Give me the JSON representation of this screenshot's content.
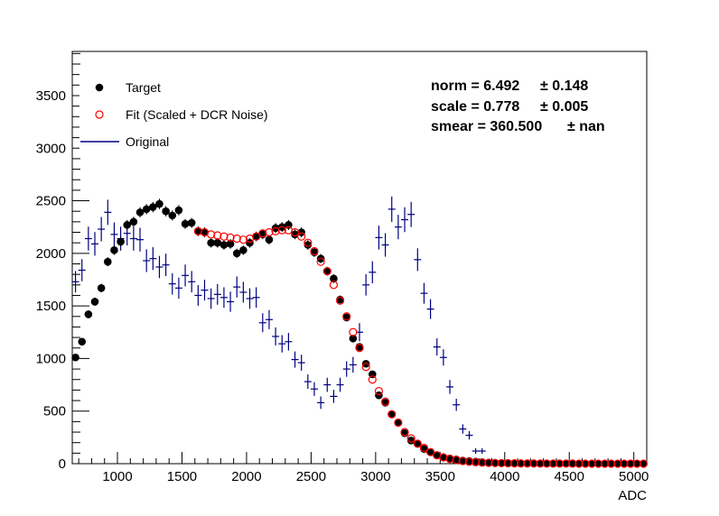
{
  "chart_data": {
    "type": "scatter",
    "title": "",
    "xlabel": "ADC",
    "ylabel": "",
    "xlim": [
      650,
      5100
    ],
    "ylim": [
      0,
      3920
    ],
    "xticks": [
      1000,
      1500,
      2000,
      2500,
      3000,
      3500,
      4000,
      4500,
      5000
    ],
    "xtick_labels": [
      "1000",
      "1500",
      "2000",
      "2500",
      "3000",
      "3500",
      "4000",
      "4500",
      "5000"
    ],
    "yticks": [
      0,
      500,
      1000,
      1500,
      2000,
      2500,
      3000,
      3500
    ],
    "ytick_labels": [
      "0",
      "500",
      "1000",
      "1500",
      "2000",
      "2500",
      "3000",
      "3500"
    ],
    "grid": false,
    "legend": {
      "placement": "top-left",
      "entries": [
        {
          "label": "Target",
          "marker": "filled-circle",
          "color": "#000000"
        },
        {
          "label": "Fit (Scaled + DCR Noise)",
          "marker": "open-circle",
          "color": "#ff0000"
        },
        {
          "label": "Original",
          "marker": "line",
          "color": "#000080"
        }
      ]
    },
    "stats": [
      {
        "label": "norm = 6.492",
        "error": "± 0.148"
      },
      {
        "label": "scale = 0.778",
        "error": "± 0.005"
      },
      {
        "label": "smear = 360.500",
        "error": "± nan"
      }
    ],
    "series": [
      {
        "name": "Target",
        "color": "#000000",
        "marker": "filled-circle",
        "x": [
          675,
          725,
          775,
          825,
          875,
          925,
          975,
          1025,
          1075,
          1125,
          1175,
          1225,
          1275,
          1325,
          1375,
          1425,
          1475,
          1525,
          1575,
          1625,
          1675,
          1725,
          1775,
          1825,
          1875,
          1925,
          1975,
          2025,
          2075,
          2125,
          2175,
          2225,
          2275,
          2325,
          2375,
          2425,
          2475,
          2525,
          2575,
          2625,
          2675,
          2725,
          2775,
          2825,
          2875,
          2925,
          2975,
          3025,
          3075,
          3125,
          3175,
          3225,
          3275,
          3325,
          3375,
          3425,
          3475,
          3525,
          3575,
          3625,
          3675,
          3725,
          3775,
          3825,
          3875,
          3925,
          3975,
          4025,
          4075,
          4125,
          4175,
          4225,
          4275,
          4325,
          4375,
          4425,
          4475,
          4525,
          4575,
          4625,
          4675,
          4725,
          4775,
          4825,
          4875,
          4925,
          4975,
          5025,
          5075
        ],
        "y": [
          1010,
          1160,
          1420,
          1540,
          1670,
          1920,
          2030,
          2110,
          2270,
          2300,
          2390,
          2420,
          2440,
          2470,
          2400,
          2360,
          2410,
          2280,
          2290,
          2210,
          2200,
          2100,
          2100,
          2080,
          2090,
          2000,
          2030,
          2100,
          2160,
          2180,
          2130,
          2240,
          2250,
          2270,
          2180,
          2200,
          2080,
          2010,
          1950,
          1830,
          1760,
          1560,
          1390,
          1190,
          1110,
          950,
          850,
          650,
          580,
          470,
          390,
          290,
          220,
          190,
          140,
          110,
          80,
          60,
          50,
          40,
          30,
          25,
          20,
          15,
          10,
          8,
          6,
          5,
          4,
          3,
          2,
          2,
          2,
          1,
          1,
          1,
          1,
          1,
          1,
          0,
          0,
          0,
          0,
          0,
          0,
          0,
          0,
          0,
          0
        ]
      },
      {
        "name": "Fit (Scaled + DCR Noise)",
        "color": "#ff0000",
        "marker": "open-circle",
        "x": [
          1625,
          1675,
          1725,
          1775,
          1825,
          1875,
          1925,
          1975,
          2025,
          2075,
          2125,
          2175,
          2225,
          2275,
          2325,
          2375,
          2425,
          2475,
          2525,
          2575,
          2625,
          2675,
          2725,
          2775,
          2825,
          2875,
          2925,
          2975,
          3025,
          3075,
          3125,
          3175,
          3225,
          3275,
          3325,
          3375,
          3425,
          3475,
          3525,
          3575,
          3625,
          3675,
          3725,
          3775,
          3825,
          3875,
          3925,
          3975,
          4025,
          4075,
          4125,
          4175,
          4225,
          4275,
          4325,
          4375,
          4425,
          4475,
          4525,
          4575,
          4625,
          4675,
          4725,
          4775,
          4825,
          4875,
          4925,
          4975,
          5025,
          5075
        ],
        "y": [
          2210,
          2200,
          2180,
          2170,
          2160,
          2150,
          2140,
          2130,
          2140,
          2160,
          2190,
          2200,
          2210,
          2220,
          2220,
          2200,
          2160,
          2100,
          2020,
          1920,
          1830,
          1700,
          1550,
          1400,
          1250,
          1100,
          920,
          800,
          690,
          590,
          470,
          390,
          300,
          240,
          190,
          150,
          110,
          80,
          60,
          45,
          35,
          25,
          18,
          14,
          10,
          8,
          6,
          5,
          4,
          3,
          2,
          2,
          2,
          1,
          1,
          1,
          1,
          1,
          1,
          0,
          0,
          0,
          0,
          0,
          0,
          0,
          0,
          0,
          0,
          0
        ]
      },
      {
        "name": "Original",
        "color": "#000080",
        "marker": "cross-errorbar",
        "x": [
          675,
          725,
          775,
          825,
          875,
          925,
          975,
          1025,
          1075,
          1125,
          1175,
          1225,
          1275,
          1325,
          1375,
          1425,
          1475,
          1525,
          1575,
          1625,
          1675,
          1725,
          1775,
          1825,
          1875,
          1925,
          1975,
          2025,
          2075,
          2125,
          2175,
          2225,
          2275,
          2325,
          2375,
          2425,
          2475,
          2525,
          2575,
          2625,
          2675,
          2725,
          2775,
          2825,
          2875,
          2925,
          2975,
          3025,
          3075,
          3125,
          3175,
          3225,
          3275,
          3325,
          3375,
          3425,
          3475,
          3525,
          3575,
          3625,
          3675,
          3725,
          3775,
          3825,
          3875,
          3925,
          3975,
          4025,
          4075,
          4125,
          4175,
          4225,
          4275,
          4325,
          4375,
          4425,
          4475,
          4525,
          4575,
          4625,
          4675,
          4725,
          4775,
          4825,
          4875,
          4925,
          4975,
          5025,
          5075
        ],
        "y": [
          1730,
          1840,
          2140,
          2090,
          2230,
          2390,
          2180,
          2140,
          2190,
          2140,
          2130,
          1930,
          1950,
          1870,
          1890,
          1710,
          1670,
          1790,
          1730,
          1600,
          1650,
          1570,
          1610,
          1580,
          1540,
          1680,
          1630,
          1570,
          1580,
          1340,
          1370,
          1210,
          1140,
          1160,
          990,
          960,
          780,
          710,
          580,
          750,
          640,
          750,
          900,
          940,
          1250,
          1700,
          1820,
          2150,
          2080,
          2420,
          2250,
          2320,
          2370,
          1940,
          1620,
          1470,
          1110,
          1010,
          730,
          560,
          330,
          270,
          120,
          120,
          30,
          20,
          10,
          15,
          10,
          8,
          5,
          10,
          5,
          5,
          5,
          5,
          5,
          5,
          5,
          5,
          5,
          5,
          5,
          5,
          5,
          5,
          5,
          5,
          5
        ]
      }
    ]
  }
}
